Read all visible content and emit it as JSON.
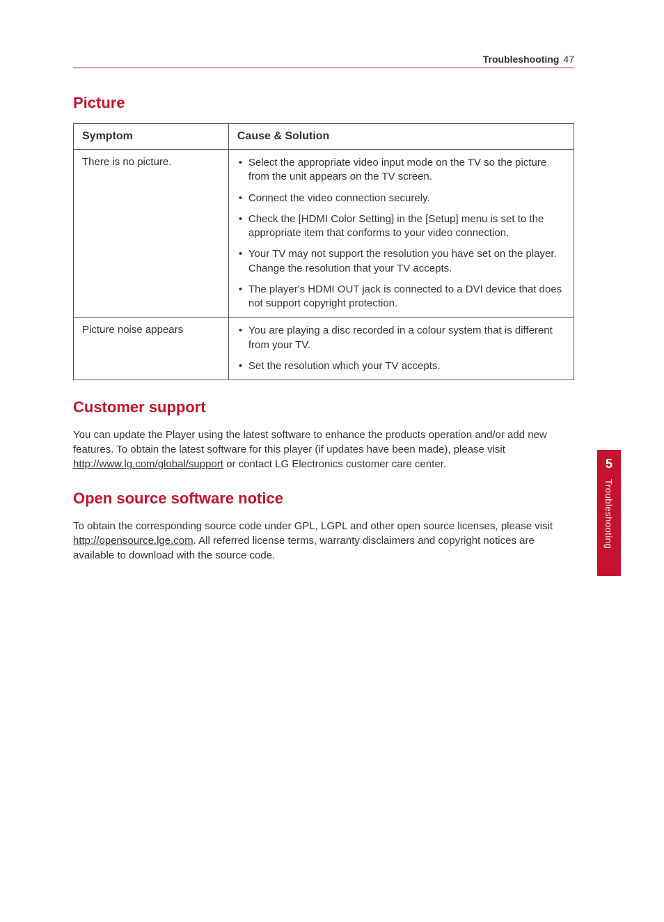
{
  "colors": {
    "accent": "#c4122f",
    "text": "#333333",
    "background": "#ffffff",
    "border": "#555555"
  },
  "header": {
    "section": "Troubleshooting",
    "page": "47"
  },
  "sections": {
    "picture": {
      "title": "Picture",
      "table": {
        "col1": "Symptom",
        "col2": "Cause & Solution",
        "rows": [
          {
            "symptom": "There is no picture.",
            "solutions": [
              "Select the appropriate video input mode on the TV so the picture from the unit appears on the TV screen.",
              "Connect the video connection securely.",
              "Check the [HDMI Color Setting] in the [Setup] menu is set to the appropriate item that conforms to your video connection.",
              "Your TV may not support the resolution you have set on the player. Change the resolution that your TV accepts.",
              "The player's HDMI OUT jack is connected to a DVI device that does not support copyright protection."
            ]
          },
          {
            "symptom": "Picture noise appears",
            "solutions": [
              "You are playing a disc recorded in a colour system that is different from your TV.",
              "Set the resolution which your TV accepts."
            ]
          }
        ]
      }
    },
    "customer": {
      "title": "Customer support",
      "text_before": "You can update the Player using the latest software to enhance the products operation and/or add new features. To obtain the latest software for this player (if updates have been made), please visit ",
      "link": "http://www.lg.com/global/support",
      "text_after": " or contact LG Electronics customer care center."
    },
    "opensource": {
      "title": "Open source software notice",
      "text_before": "To obtain the corresponding source code under GPL, LGPL and other open source licenses, please visit ",
      "link": "http://opensource.lge.com",
      "text_after": ". All referred license terms, warranty disclaimers and copyright notices are available to download with the source code."
    }
  },
  "sidetab": {
    "number": "5",
    "label": "Troubleshooting"
  }
}
